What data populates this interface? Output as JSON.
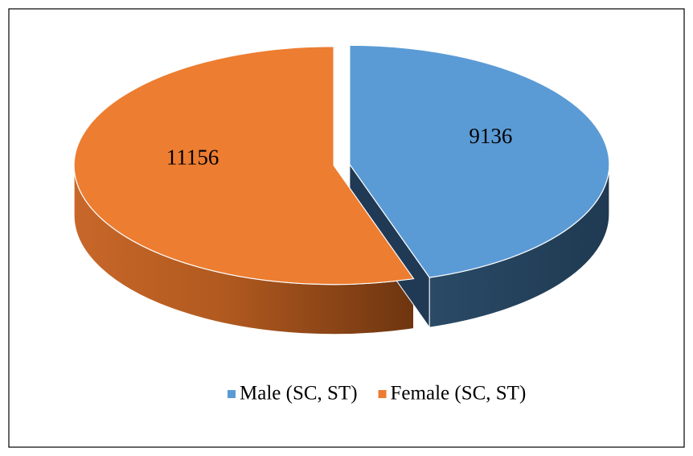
{
  "chart_data": {
    "type": "pie",
    "categories": [
      "Male (SC, ST)",
      "Female (SC, ST)"
    ],
    "values": [
      9136,
      11156
    ],
    "colors": [
      "#5b9bd5",
      "#ed7d31"
    ]
  }
}
